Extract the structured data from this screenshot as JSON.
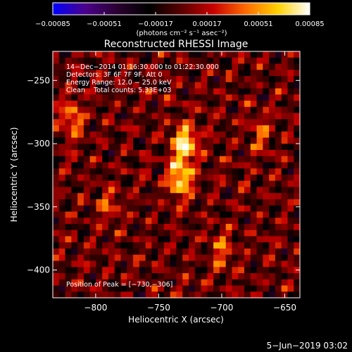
{
  "chart_data": {
    "type": "heatmap",
    "title": "Reconstructed RHESSI Image",
    "xlabel": "Heliocentric X (arcsec)",
    "ylabel": "Heliocentric Y (arcsec)",
    "xlim": [
      -834,
      -638
    ],
    "ylim": [
      -422,
      -227
    ],
    "x_ticks": [
      {
        "value": -800,
        "label": "−800"
      },
      {
        "value": -750,
        "label": "−750"
      },
      {
        "value": -700,
        "label": "−700"
      },
      {
        "value": -650,
        "label": "−650"
      }
    ],
    "y_ticks": [
      {
        "value": -250,
        "label": "−250"
      },
      {
        "value": -300,
        "label": "−300"
      },
      {
        "value": -350,
        "label": "−350"
      },
      {
        "value": -400,
        "label": "−400"
      }
    ],
    "colorbar": {
      "range": [
        -0.00085,
        0.00085
      ],
      "ticks": [
        {
          "value": -0.00085,
          "label": "−0.00085"
        },
        {
          "value": -0.00051,
          "label": "−0.00051"
        },
        {
          "value": -0.00017,
          "label": "−0.00017"
        },
        {
          "value": 0.00017,
          "label": "0.00017"
        },
        {
          "value": 0.00051,
          "label": "0.00051"
        },
        {
          "value": 0.00085,
          "label": "0.00085"
        }
      ],
      "unit_label": "(photons cm⁻² s⁻¹ asec⁻²)",
      "colormap": [
        "#0000ff",
        "#4b008c",
        "#2a0030",
        "#000000",
        "#5a0000",
        "#c80000",
        "#ff6a00",
        "#ffd000",
        "#ffffff"
      ]
    },
    "info_lines": [
      "14−Dec−2014 01:16:30.000 to 01:22:30.000",
      "Detectors: 3F 6F 7F 9F, Att 0",
      "Energy Range: 12.0 − 25.0 keV",
      "Clean    Total counts: 5.33E+03"
    ],
    "peak_label": "Position of Peak = [−730,−306]",
    "peak_position": [
      -730,
      -306
    ],
    "sources": [
      {
        "x": -729,
        "y": -300,
        "flux": 0.00085
      },
      {
        "x": -733,
        "y": -328,
        "flux": 0.00075
      },
      {
        "x": -819,
        "y": -280,
        "flux": 0.0005
      },
      {
        "x": -700,
        "y": -385,
        "flux": 0.00035
      },
      {
        "x": -670,
        "y": -292,
        "flux": 0.00032
      },
      {
        "x": -790,
        "y": -350,
        "flux": 0.00028
      }
    ],
    "grid": false
  },
  "footer": {
    "date": "5−Jun−2019 03:02"
  }
}
